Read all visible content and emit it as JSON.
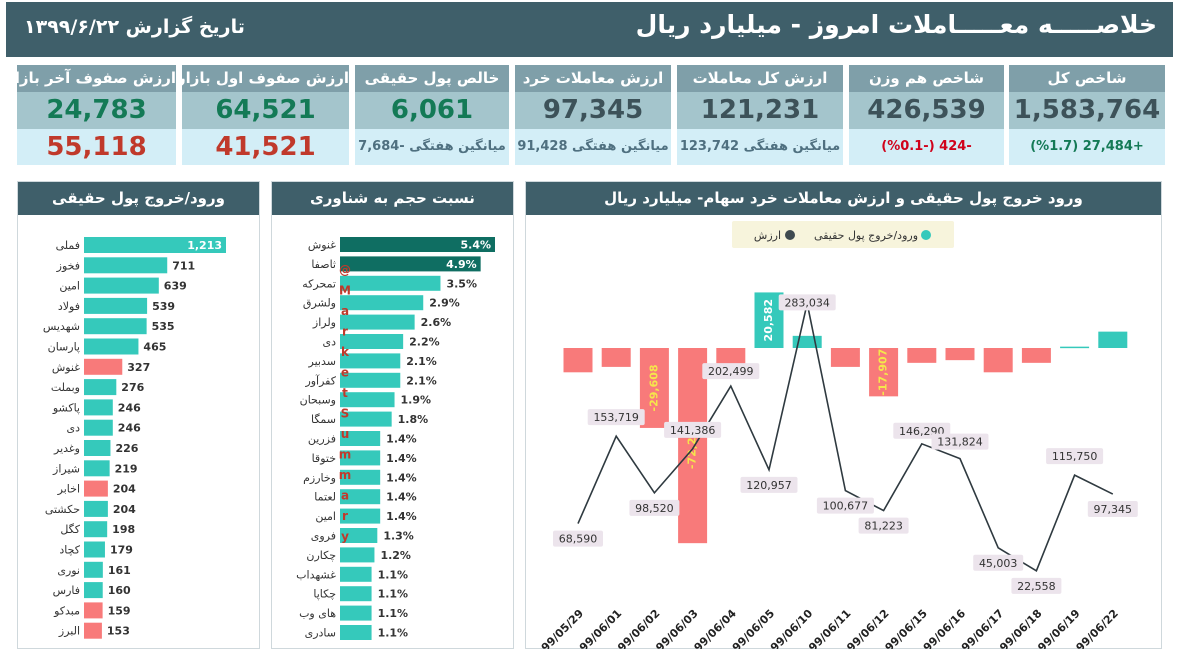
{
  "header": {
    "title": "خلاصـــــه معـــــاملات امروز - میلیارد ریال",
    "date": "تاریخ گزارش ۱۳۹۹/۶/۲۲"
  },
  "colors": {
    "header_bg": "#3f5f6a",
    "kpi_label_bg": "#7f9fa9",
    "kpi_value_bg": "#a4c5cc",
    "kpi_sub_bg": "#d3eef7",
    "teal": "#35c9bb",
    "dark_teal": "#0f6e62",
    "salmon": "#f87a7a",
    "green_text": "#147a56",
    "red_text": "#c0392b"
  },
  "kpis": [
    {
      "label": "شاخص کل",
      "value": "1,583,764",
      "sub": "+27,484 (%1.7)",
      "sub_color": "#147a56",
      "value_color": "#3d5259"
    },
    {
      "label": "شاخص هم وزن",
      "value": "426,539",
      "sub": "-424 (-%0.1)",
      "sub_color": "#d0021b",
      "value_color": "#3d5259"
    },
    {
      "label": "ارزش کل معاملات",
      "value": "121,231",
      "sub": "میانگین هفتگی 123,742",
      "sub_color": "#4f7080",
      "value_color": "#3d5259"
    },
    {
      "label": "ارزش معاملات خرد",
      "value": "97,345",
      "sub": "میانگین هفتگی 91,428",
      "sub_color": "#4f7080",
      "value_color": "#3d5259"
    },
    {
      "label": "خالص پول حقیقی",
      "value": "6,061",
      "sub": "میانگین هفتگی -7,684",
      "sub_color": "#4f7080",
      "value_color": "#147a56"
    },
    {
      "label": "ارزش صفوف اول بازار",
      "value": "64,521",
      "sub": "41,521",
      "sub_color": "#c0392b",
      "value_color": "#147a56",
      "sub_big": true
    },
    {
      "label": "ارزش صفوف آخر بازار",
      "value": "24,783",
      "sub": "55,118",
      "sub_color": "#c0392b",
      "value_color": "#147a56",
      "sub_big": true
    }
  ],
  "money_flow": {
    "title": "ورود/خروج پول حقیقی",
    "items": [
      {
        "name": "فملی",
        "value": 1213,
        "label": "1,213"
      },
      {
        "name": "فخوز",
        "value": 711,
        "label": "711"
      },
      {
        "name": "امین",
        "value": 639,
        "label": "639"
      },
      {
        "name": "فولاد",
        "value": 539,
        "label": "539"
      },
      {
        "name": "شهدیس",
        "value": 535,
        "label": "535"
      },
      {
        "name": "پارسان",
        "value": 465,
        "label": "465"
      },
      {
        "name": "غنوش",
        "value": 327,
        "label": "327",
        "neg": true
      },
      {
        "name": "وبملت",
        "value": 276,
        "label": "276"
      },
      {
        "name": "پاکشو",
        "value": 246,
        "label": "246"
      },
      {
        "name": "دی",
        "value": 246,
        "label": "246"
      },
      {
        "name": "وغدیر",
        "value": 226,
        "label": "226"
      },
      {
        "name": "شیراز",
        "value": 219,
        "label": "219"
      },
      {
        "name": "اخابر",
        "value": 204,
        "label": "204",
        "neg": true
      },
      {
        "name": "حکشتی",
        "value": 204,
        "label": "204"
      },
      {
        "name": "کگل",
        "value": 198,
        "label": "198"
      },
      {
        "name": "کچاد",
        "value": 179,
        "label": "179"
      },
      {
        "name": "نوری",
        "value": 161,
        "label": "161"
      },
      {
        "name": "فارس",
        "value": 160,
        "label": "160"
      },
      {
        "name": "مبدکو",
        "value": 159,
        "label": "159",
        "neg": true
      },
      {
        "name": "البرز",
        "value": 153,
        "label": "153",
        "neg": true
      }
    ]
  },
  "float_ratio": {
    "title": "نسبت حجم به شناوری",
    "watermark": "@MarketSummary",
    "items": [
      {
        "name": "غنوش",
        "value": 5.4,
        "label": "5.4%",
        "tone": "dark"
      },
      {
        "name": "ثاصفا",
        "value": 4.9,
        "label": "4.9%",
        "tone": "dark"
      },
      {
        "name": "تمحرکه",
        "value": 3.5,
        "label": "3.5%"
      },
      {
        "name": "ولشرق",
        "value": 2.9,
        "label": "2.9%"
      },
      {
        "name": "ولراز",
        "value": 2.6,
        "label": "2.6%"
      },
      {
        "name": "دی",
        "value": 2.2,
        "label": "2.2%"
      },
      {
        "name": "سدبیر",
        "value": 2.1,
        "label": "2.1%"
      },
      {
        "name": "کفرآور",
        "value": 2.1,
        "label": "2.1%"
      },
      {
        "name": "وسبحان",
        "value": 1.9,
        "label": "1.9%"
      },
      {
        "name": "سمگا",
        "value": 1.8,
        "label": "1.8%"
      },
      {
        "name": "فزرین",
        "value": 1.4,
        "label": "1.4%"
      },
      {
        "name": "ختوقا",
        "value": 1.4,
        "label": "1.4%"
      },
      {
        "name": "وخارزم",
        "value": 1.4,
        "label": "1.4%"
      },
      {
        "name": "لعتما",
        "value": 1.4,
        "label": "1.4%"
      },
      {
        "name": "امین",
        "value": 1.4,
        "label": "1.4%"
      },
      {
        "name": "فروی",
        "value": 1.3,
        "label": "1.3%"
      },
      {
        "name": "چکارن",
        "value": 1.2,
        "label": "1.2%"
      },
      {
        "name": "غشهداب",
        "value": 1.1,
        "label": "1.1%"
      },
      {
        "name": "چکاپا",
        "value": 1.1,
        "label": "1.1%"
      },
      {
        "name": "های وب",
        "value": 1.1,
        "label": "1.1%"
      },
      {
        "name": "سادری",
        "value": 1.1,
        "label": "1.1%"
      }
    ]
  },
  "combo_chart": {
    "title": "ورود خروج پول حقیقی و ارزش معاملات خرد سهام- میلیارد ریال",
    "legend": [
      {
        "name": "ورود/خروج پول حقیقی",
        "color": "#35c9bb"
      },
      {
        "name": "ارزش",
        "color": "#3f4a50"
      }
    ]
  },
  "chart_data": {
    "type": "bar",
    "categories": [
      "99/05/29",
      "99/06/01",
      "99/06/02",
      "99/06/03",
      "99/06/04",
      "99/06/05",
      "99/06/10",
      "99/06/11",
      "99/06/12",
      "99/06/15",
      "99/06/16",
      "99/06/17",
      "99/06/18",
      "99/06/19",
      "99/06/22"
    ],
    "series": [
      {
        "name": "ورود/خروج پول حقیقی",
        "kind": "bar",
        "values": [
          -9000,
          -7000,
          -29608,
          -72283,
          -9000,
          20582,
          4500,
          -7000,
          -17907,
          -5500,
          -4500,
          -9000,
          -5500,
          500,
          6061
        ],
        "labels": [
          "",
          "",
          "-29,608",
          "-72,283",
          "",
          "20,582",
          "",
          "",
          "-17,907",
          "",
          "",
          "",
          "",
          "",
          ""
        ]
      },
      {
        "name": "ارزش",
        "kind": "line",
        "values": [
          68590,
          153719,
          98520,
          141386,
          202499,
          120957,
          283034,
          100677,
          81223,
          146290,
          131824,
          45003,
          22558,
          115750,
          97345
        ],
        "labels": [
          "68,590",
          "153,719",
          "98,520",
          "141,386",
          "202,499",
          "120,957",
          "283,034",
          "100,677",
          "81,223",
          "146,290",
          "131,824",
          "45,003",
          "22,558",
          "115,750",
          "97,345"
        ]
      }
    ]
  }
}
